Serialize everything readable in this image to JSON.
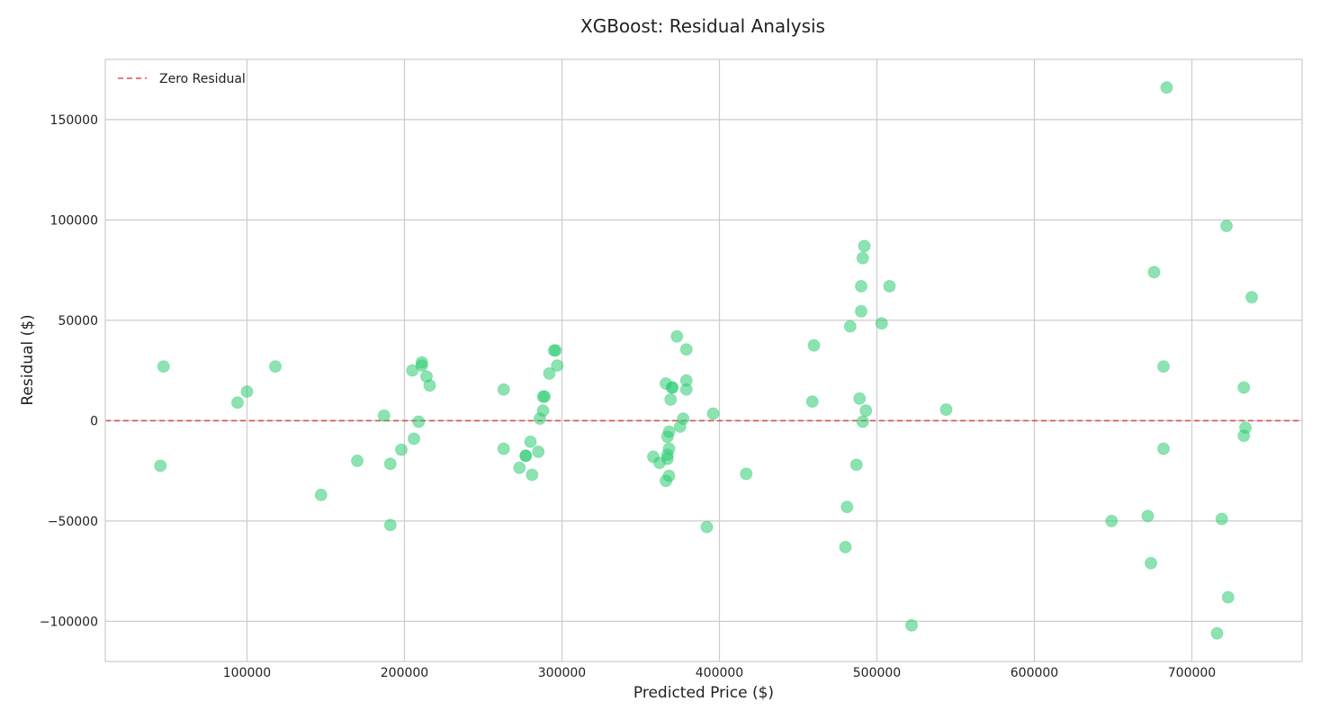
{
  "chart_data": {
    "type": "scatter",
    "title": "XGBoost: Residual Analysis",
    "xlabel": "Predicted Price ($)",
    "ylabel": "Residual ($)",
    "xlim": [
      10000,
      770000
    ],
    "ylim": [
      -120000,
      180000
    ],
    "xticks": [
      100000,
      200000,
      300000,
      400000,
      500000,
      600000,
      700000
    ],
    "yticks": [
      -100000,
      -50000,
      0,
      50000,
      100000,
      150000
    ],
    "xtick_labels": [
      "100000",
      "200000",
      "300000",
      "400000",
      "500000",
      "600000",
      "700000"
    ],
    "ytick_labels": [
      "−100000",
      "−50000",
      "0",
      "50000",
      "100000",
      "150000"
    ],
    "grid": true,
    "legend": {
      "position": "top-left",
      "entries": [
        "Zero Residual"
      ]
    },
    "reference_line": {
      "y": 0,
      "label": "Zero Residual",
      "style": "dashed",
      "color": "#d9534f"
    },
    "point_color": "#2ecc71",
    "point_alpha": 0.55,
    "series": [
      {
        "name": "Residuals",
        "x": [
          47000,
          45000,
          94000,
          100000,
          118000,
          147000,
          170000,
          187000,
          191000,
          191000,
          198000,
          205000,
          206000,
          209000,
          211000,
          211000,
          214000,
          216000,
          263000,
          263000,
          273000,
          277000,
          277000,
          280000,
          281000,
          285000,
          286000,
          288000,
          288000,
          289000,
          292000,
          295000,
          296000,
          297000,
          358000,
          362000,
          366000,
          366000,
          367000,
          367000,
          367000,
          368000,
          368000,
          368000,
          369000,
          370000,
          370000,
          373000,
          375000,
          377000,
          379000,
          379000,
          379000,
          392000,
          396000,
          417000,
          459000,
          460000,
          480000,
          481000,
          483000,
          487000,
          489000,
          490000,
          490000,
          491000,
          491000,
          492000,
          493000,
          503000,
          508000,
          522000,
          544000,
          649000,
          672000,
          674000,
          676000,
          682000,
          682000,
          684000,
          716000,
          719000,
          722000,
          723000,
          733000,
          733000,
          734000,
          738000
        ],
        "y": [
          27000,
          -22500,
          9000,
          14500,
          27000,
          -37000,
          -20000,
          2500,
          -21500,
          -52000,
          -14500,
          25000,
          -9000,
          -500,
          27500,
          29000,
          22000,
          17500,
          15500,
          -14000,
          -23500,
          -17500,
          -17500,
          -10500,
          -27000,
          -15500,
          1000,
          12000,
          5000,
          12000,
          23500,
          35000,
          35000,
          27500,
          -18000,
          -21000,
          18500,
          -30000,
          -8000,
          -17000,
          -19000,
          -14000,
          -27500,
          -5500,
          10500,
          16500,
          16500,
          42000,
          -3000,
          1000,
          35500,
          20000,
          15500,
          -53000,
          3500,
          -26500,
          9500,
          37500,
          -63000,
          -43000,
          47000,
          -22000,
          11000,
          54500,
          67000,
          -500,
          81000,
          87000,
          5000,
          48500,
          67000,
          -102000,
          5500,
          -50000,
          -47500,
          -71000,
          74000,
          -14000,
          27000,
          166000,
          -106000,
          -49000,
          97000,
          -88000,
          16500,
          -7500,
          -3500,
          61500
        ]
      }
    ]
  }
}
